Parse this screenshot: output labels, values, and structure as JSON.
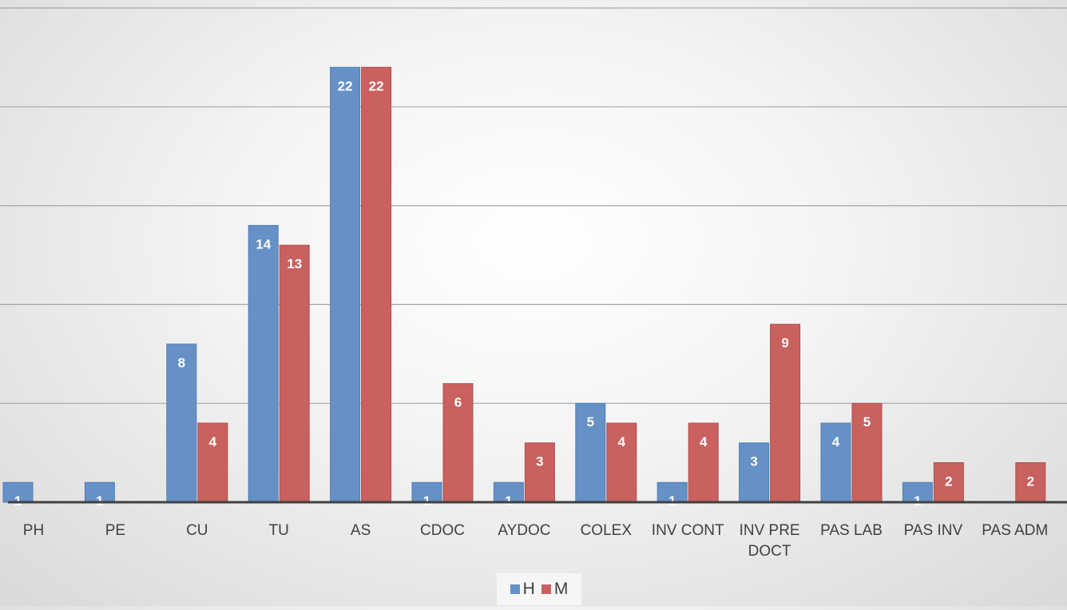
{
  "chart_data": {
    "type": "bar",
    "title": "",
    "xlabel": "",
    "ylabel": "",
    "ylim": [
      0,
      25
    ],
    "grid": true,
    "legend_position": "bottom",
    "categories": [
      [
        "PH"
      ],
      [
        "PE"
      ],
      [
        "CU"
      ],
      [
        "TU"
      ],
      [
        "AS"
      ],
      [
        "CDOC"
      ],
      [
        "AYDOC"
      ],
      [
        "COLEX"
      ],
      [
        "INV CONT"
      ],
      [
        "INV PRE",
        "DOCT"
      ],
      [
        "PAS LAB"
      ],
      [
        "PAS INV"
      ],
      [
        "PAS ADM"
      ]
    ],
    "series": [
      {
        "name": "H",
        "color": "#6591c6",
        "values": [
          1,
          1,
          8,
          14,
          22,
          1,
          1,
          5,
          1,
          3,
          4,
          1,
          null
        ]
      },
      {
        "name": "M",
        "color": "#c9615f",
        "values": [
          null,
          null,
          4,
          13,
          22,
          6,
          3,
          4,
          4,
          9,
          5,
          2,
          2
        ]
      }
    ]
  }
}
